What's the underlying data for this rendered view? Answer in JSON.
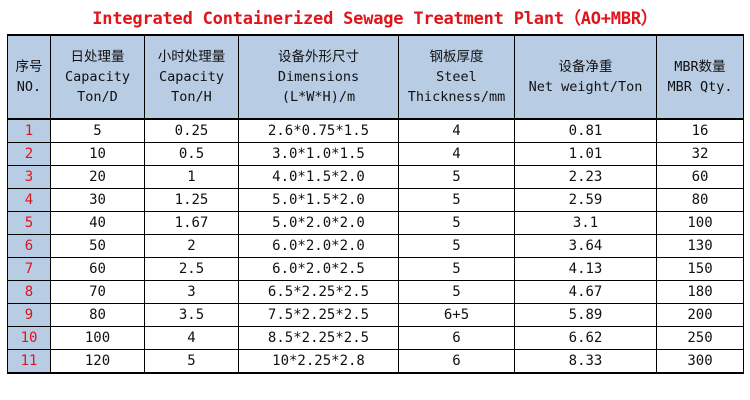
{
  "title": "Integrated Containerized Sewage Treatment Plant（AO+MBR）",
  "table": {
    "headers": [
      [
        "序号",
        "NO."
      ],
      [
        "日处理量",
        "Capacity",
        "Ton/D"
      ],
      [
        "小时处理量",
        "Capacity",
        "Ton/H"
      ],
      [
        "设备外形尺寸",
        "Dimensions",
        "(L*W*H)/m"
      ],
      [
        "钢板厚度",
        "Steel",
        "Thickness/mm"
      ],
      [
        "设备净重",
        "Net weight/Ton"
      ],
      [
        "MBR数量",
        "MBR Qty."
      ]
    ],
    "rows": [
      [
        "1",
        "5",
        "0.25",
        "2.6*0.75*1.5",
        "4",
        "0.81",
        "16"
      ],
      [
        "2",
        "10",
        "0.5",
        "3.0*1.0*1.5",
        "4",
        "1.01",
        "32"
      ],
      [
        "3",
        "20",
        "1",
        "4.0*1.5*2.0",
        "5",
        "2.23",
        "60"
      ],
      [
        "4",
        "30",
        "1.25",
        "5.0*1.5*2.0",
        "5",
        "2.59",
        "80"
      ],
      [
        "5",
        "40",
        "1.67",
        "5.0*2.0*2.0",
        "5",
        "3.1",
        "100"
      ],
      [
        "6",
        "50",
        "2",
        "6.0*2.0*2.0",
        "5",
        "3.64",
        "130"
      ],
      [
        "7",
        "60",
        "2.5",
        "6.0*2.0*2.5",
        "5",
        "4.13",
        "150"
      ],
      [
        "8",
        "70",
        "3",
        "6.5*2.25*2.5",
        "5",
        "4.67",
        "180"
      ],
      [
        "9",
        "80",
        "3.5",
        "7.5*2.25*2.5",
        "6+5",
        "5.89",
        "200"
      ],
      [
        "10",
        "100",
        "4",
        "8.5*2.25*2.5",
        "6",
        "6.62",
        "250"
      ],
      [
        "11",
        "120",
        "5",
        "10*2.25*2.8",
        "6",
        "8.33",
        "300"
      ]
    ]
  },
  "colors": {
    "title_red": "#e0141b",
    "header_blue": "#b8cce4",
    "index_red": "#e0141b"
  }
}
